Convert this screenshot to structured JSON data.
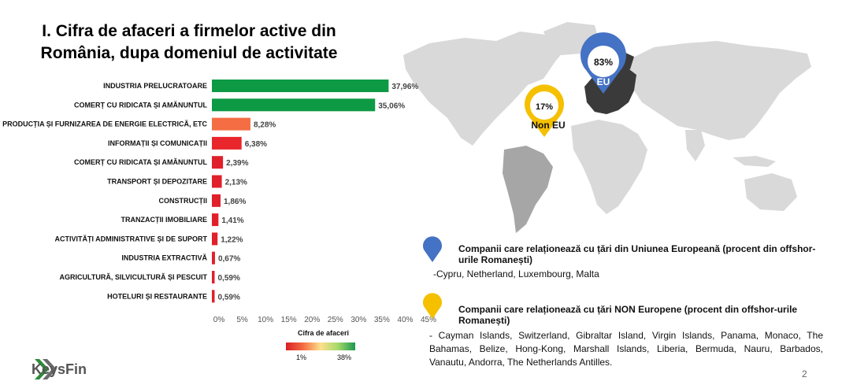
{
  "title_line1": "I. Cifra de afaceri a firmelor active din",
  "title_line2": "România, dupa domeniul de activitate",
  "chart_data": {
    "type": "bar",
    "orientation": "horizontal",
    "categories": [
      "INDUSTRIA PRELUCRATOARE",
      "COMERȚ CU RIDICATA ȘI AMĂNUNTUL",
      "PRODUCȚIA ȘI FURNIZAREA DE ENERGIE ELECTRICĂ, ETC",
      "INFORMAȚII ȘI COMUNICAȚII",
      "COMERȚ CU RIDICATA ȘI AMĂNUNTUL",
      "TRANSPORT ȘI DEPOZITARE",
      "CONSTRUCȚII",
      "TRANZACȚII IMOBILIARE",
      "ACTIVITĂȚI ADMINISTRATIVE ȘI DE SUPORT",
      "INDUSTRIA EXTRACTIVĂ",
      "AGRICULTURĂ, SILVICULTURĂ ȘI PESCUIT",
      "HOTELURI ȘI RESTAURANTE"
    ],
    "values": [
      37.96,
      35.06,
      8.28,
      6.38,
      2.39,
      2.13,
      1.86,
      1.41,
      1.22,
      0.67,
      0.59,
      0.59
    ],
    "value_labels": [
      "37,96%",
      "35,06%",
      "8,28%",
      "6,38%",
      "2,39%",
      "2,13%",
      "1,86%",
      "1,41%",
      "1,22%",
      "0,67%",
      "0,59%",
      "0,59%"
    ],
    "bar_colors": [
      "#0e9a44",
      "#0e9a44",
      "#f46d43",
      "#e8262b",
      "#e0202a",
      "#e0202a",
      "#e0202a",
      "#e0202a",
      "#e0202a",
      "#e0202a",
      "#e0202a",
      "#e0202a"
    ],
    "x_ticks": [
      "0%",
      "5%",
      "10%",
      "15%",
      "20%",
      "25%",
      "30%",
      "35%",
      "40%",
      "45%"
    ],
    "xlim": [
      0,
      45
    ],
    "grid": false,
    "legend": {
      "title": "Cifra de afaceri",
      "low": "1%",
      "high": "38%",
      "colors": [
        "#d91f26",
        "#f46d43",
        "#fee08b",
        "#a6d96a",
        "#1a9850"
      ]
    }
  },
  "map": {
    "eu_pin": {
      "percent": "83%",
      "label": "EU",
      "color": "#4472c4"
    },
    "non_eu_pin": {
      "percent": "17%",
      "label": "Non EU",
      "color": "#f5c000"
    }
  },
  "eu_info": {
    "heading": "Companii care relaționează cu țări din Uniunea Europeană (procent din offshor-urile Romanești)",
    "countries": "-Cypru, Netherland, Luxembourg, Malta"
  },
  "non_eu_info": {
    "heading": "Companii care relaționează cu țări NON Europene (procent din offshor-urile Romanești)",
    "countries": "- Cayman Islands, Switzerland, Gibraltar Island, Virgin Islands, Panama, Monaco, The Bahamas, Belize, Hong-Kong, Marshall Islands, Liberia, Bermuda, Nauru, Barbados, Vanautu, Andorra, The Netherlands Antilles."
  },
  "logo_text": "KeysFin",
  "page_number": "2"
}
